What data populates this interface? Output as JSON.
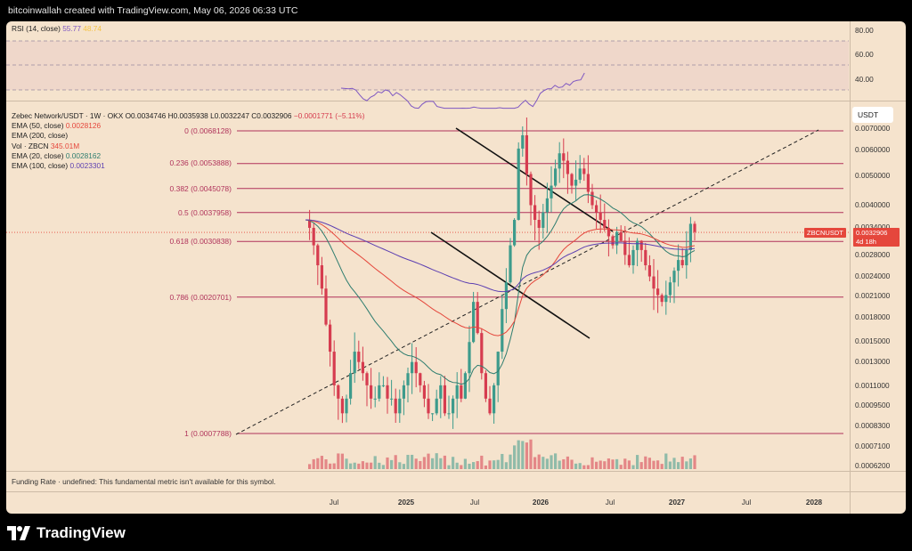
{
  "header": {
    "credit": "bitcoinwallah created with TradingView.com, May 06, 2026 06:33 UTC"
  },
  "rsi_pane": {
    "label": "RSI (14, close)",
    "value": "55.77",
    "ma_value": "48.74",
    "colors": {
      "rsi": "#7e57c2",
      "ma": "#f5c342"
    },
    "axis_ticks": [
      "80.00",
      "60.00",
      "40.00"
    ]
  },
  "legend": {
    "symbol_line": "Zebec Network/USDT · 1W · OKX",
    "open_label": "O",
    "open": "0.0034746",
    "high_label": "H",
    "high": "0.0035938",
    "low_label": "L",
    "low": "0.0032247",
    "close_label": "C",
    "close": "0.0032906",
    "change": "−0.0001771 (−5.11%)",
    "indicators": [
      {
        "label": "EMA (50, close)",
        "value": "0.0028126",
        "color": "#e5473c"
      },
      {
        "label": "EMA (200, close)",
        "value": "",
        "color": "#e5473c"
      },
      {
        "label": "Vol · ZBCN",
        "value": "345.01M",
        "color": "#e5473c"
      },
      {
        "label": "EMA (20, close)",
        "value": "0.0028162",
        "color": "#2e7d6f"
      },
      {
        "label": "EMA (100, close)",
        "value": "0.0023301",
        "color": "#5c3fb1"
      }
    ]
  },
  "fib_levels": [
    {
      "label": "0 (0.0068128)",
      "price": 0.0068128
    },
    {
      "label": "0.236 (0.0053888)",
      "price": 0.0053888
    },
    {
      "label": "0.382 (0.0045078)",
      "price": 0.0045078
    },
    {
      "label": "0.5 (0.0037958)",
      "price": 0.0037958
    },
    {
      "label": "0.618 (0.0030838)",
      "price": 0.0030838
    },
    {
      "label": "0.786 (0.0020701)",
      "price": 0.0020701
    },
    {
      "label": "1 (0.0007788)",
      "price": 0.0007788
    }
  ],
  "price_axis": {
    "currency": "USDT",
    "ticks": [
      "0.0070000",
      "0.0060000",
      "0.0050000",
      "0.0040000",
      "0.0034000",
      "0.0028000",
      "0.0024000",
      "0.0021000",
      "0.0018000",
      "0.0015000",
      "0.0013000",
      "0.0011000",
      "0.0009500",
      "0.0008300",
      "0.0007100",
      "0.0006200"
    ],
    "last_price_label": "ZBCNUSDT",
    "last_price": "0.0032906",
    "countdown": "4d 18h",
    "colors": {
      "badge": "#e5473c"
    }
  },
  "time_axis": {
    "labels": [
      {
        "text": "Jul",
        "bold": false
      },
      {
        "text": "2025",
        "bold": true
      },
      {
        "text": "Jul",
        "bold": false
      },
      {
        "text": "2026",
        "bold": true
      },
      {
        "text": "Jul",
        "bold": false
      },
      {
        "text": "2027",
        "bold": true
      },
      {
        "text": "Jul",
        "bold": false
      },
      {
        "text": "2028",
        "bold": true
      }
    ]
  },
  "funding_pane": {
    "text": "Funding Rate · undefined: This fundamental metric isn't available for this symbol."
  },
  "brand": {
    "name": "TradingView",
    "icon": "tradingview-logo-icon"
  },
  "colors": {
    "background": "#f5e3cd",
    "up": "#3d9b8c",
    "down": "#d63c4f",
    "fib": "#b0335b"
  }
}
